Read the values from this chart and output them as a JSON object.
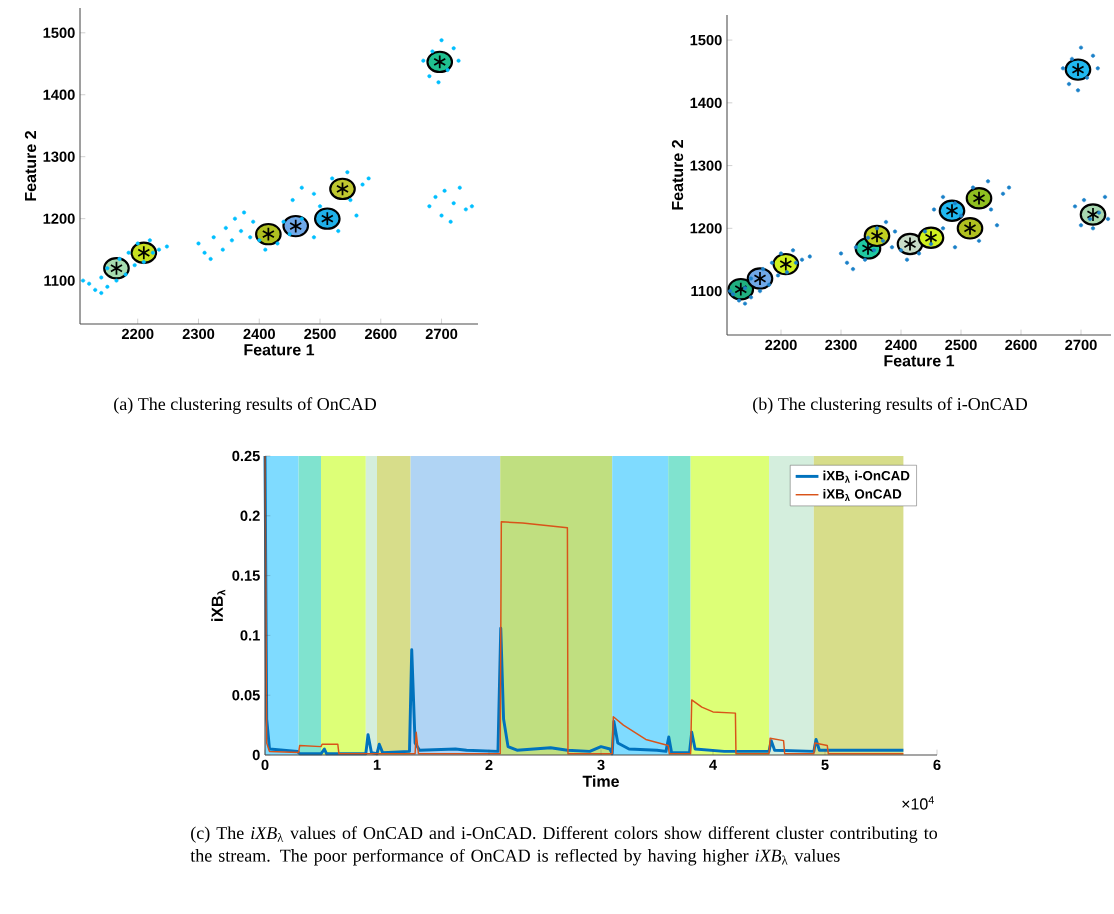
{
  "chart_data": [
    {
      "type": "scatter",
      "xlabel": "Feature 1",
      "ylabel": "Feature 2",
      "xlim": [
        2105,
        2760
      ],
      "ylim": [
        1030,
        1540
      ],
      "xticks": [
        2200,
        2300,
        2400,
        2500,
        2600,
        2700
      ],
      "yticks": [
        1100,
        1200,
        1300,
        1400,
        1500
      ],
      "series": [
        {
          "marker": "circle",
          "color": "#00bfff",
          "x": [
            2110,
            2120,
            2130,
            2140,
            2150,
            2150,
            2165,
            2170,
            2180,
            2185,
            2195,
            2200,
            2210,
            2220,
            2225,
            2235,
            2248,
            2140,
            2300,
            2310,
            2320,
            2325,
            2340,
            2345,
            2355,
            2360,
            2370,
            2375,
            2385,
            2390,
            2400,
            2410,
            2430,
            2440,
            2450,
            2455,
            2470,
            2470,
            2490,
            2490,
            2500,
            2520,
            2530,
            2545,
            2550,
            2560,
            2570,
            2580,
            2670,
            2680,
            2685,
            2695,
            2700,
            2710,
            2720,
            2728,
            2680,
            2690,
            2700,
            2705,
            2715,
            2720,
            2730,
            2740,
            2750
          ],
          "values": [
            1100,
            1095,
            1085,
            1105,
            1090,
            1120,
            1100,
            1135,
            1110,
            1145,
            1125,
            1160,
            1130,
            1165,
            1145,
            1150,
            1155,
            1080,
            1160,
            1145,
            1135,
            1170,
            1150,
            1185,
            1165,
            1200,
            1180,
            1210,
            1170,
            1195,
            1165,
            1150,
            1160,
            1195,
            1175,
            1230,
            1250,
            1200,
            1240,
            1170,
            1220,
            1265,
            1180,
            1275,
            1230,
            1205,
            1255,
            1265,
            1455,
            1430,
            1470,
            1420,
            1488,
            1440,
            1475,
            1455,
            1220,
            1235,
            1205,
            1245,
            1195,
            1225,
            1250,
            1215,
            1220
          ]
        },
        {
          "marker": "star",
          "colors": [
            "#a8dcb0",
            "#c8e020",
            "#b0c020",
            "#70a8e8",
            "#20b0e8",
            "#c0c830",
            "#20c090"
          ],
          "x": [
            2165,
            2210,
            2415,
            2460,
            2512,
            2537,
            2697
          ],
          "values": [
            1120,
            1145,
            1175,
            1188,
            1200,
            1248,
            1453
          ]
        }
      ],
      "annotations": [
        "(a) The clustering results of OnCAD"
      ]
    },
    {
      "type": "scatter",
      "xlabel": "Feature 1",
      "ylabel": "Feature 2",
      "xlim": [
        2110,
        2750
      ],
      "ylim": [
        1030,
        1540
      ],
      "xticks": [
        2200,
        2300,
        2400,
        2500,
        2600,
        2700
      ],
      "yticks": [
        1100,
        1200,
        1300,
        1400,
        1500
      ],
      "series": [
        {
          "marker": "circle",
          "color": "#1a80c8",
          "x": [
            2115,
            2120,
            2130,
            2140,
            2150,
            2150,
            2165,
            2170,
            2180,
            2185,
            2195,
            2200,
            2210,
            2220,
            2225,
            2235,
            2248,
            2140,
            2300,
            2310,
            2320,
            2325,
            2340,
            2345,
            2355,
            2360,
            2370,
            2375,
            2385,
            2390,
            2400,
            2410,
            2430,
            2440,
            2450,
            2455,
            2470,
            2470,
            2490,
            2490,
            2500,
            2520,
            2530,
            2545,
            2550,
            2560,
            2570,
            2580,
            2670,
            2680,
            2685,
            2695,
            2700,
            2710,
            2720,
            2728,
            2690,
            2700,
            2705,
            2715,
            2720,
            2730,
            2740,
            2745
          ],
          "values": [
            1100,
            1095,
            1085,
            1105,
            1090,
            1120,
            1100,
            1135,
            1110,
            1145,
            1125,
            1160,
            1130,
            1165,
            1145,
            1150,
            1155,
            1080,
            1160,
            1145,
            1135,
            1170,
            1150,
            1185,
            1165,
            1200,
            1180,
            1210,
            1170,
            1195,
            1165,
            1150,
            1160,
            1195,
            1175,
            1230,
            1250,
            1200,
            1240,
            1170,
            1220,
            1265,
            1180,
            1275,
            1230,
            1205,
            1255,
            1265,
            1455,
            1430,
            1470,
            1420,
            1488,
            1440,
            1475,
            1455,
            1235,
            1205,
            1245,
            1215,
            1200,
            1225,
            1250,
            1215
          ]
        },
        {
          "marker": "star",
          "colors": [
            "#20b080",
            "#70a8e8",
            "#d0f020",
            "#20c8a0",
            "#c0d020",
            "#c8dcc8",
            "#d0f020",
            "#20b8f0",
            "#b0c020",
            "#90c020",
            "#20b8f0",
            "#a8d8b0"
          ],
          "x": [
            2133,
            2165,
            2208,
            2345,
            2360,
            2415,
            2450,
            2485,
            2515,
            2530,
            2695,
            2720
          ],
          "values": [
            1103,
            1120,
            1143,
            1168,
            1188,
            1175,
            1185,
            1228,
            1200,
            1248,
            1453,
            1222
          ]
        }
      ],
      "annotations": [
        "(b) The clustering results of i-OnCAD"
      ]
    },
    {
      "type": "line",
      "xlabel": "Time",
      "ylabel": "iXB$_{λ}$",
      "xlim": [
        0,
        6
      ],
      "ylim": [
        0,
        0.25
      ],
      "xticks": [
        0,
        1,
        2,
        3,
        4,
        5,
        6
      ],
      "yticks": [
        0,
        0.05,
        0.1,
        0.15,
        0.2,
        0.25
      ],
      "legend": "top right",
      "bands": [
        {
          "axis": "x",
          "from": 0,
          "to": 0.3,
          "color": "#7fdbff"
        },
        {
          "axis": "x",
          "from": 0.3,
          "to": 0.5,
          "color": "#80e3cf"
        },
        {
          "axis": "x",
          "from": 0.5,
          "to": 0.9,
          "color": "#ddff77"
        },
        {
          "axis": "x",
          "from": 0.9,
          "to": 1.0,
          "color": "#d4eedd"
        },
        {
          "axis": "x",
          "from": 1.0,
          "to": 1.3,
          "color": "#d7dd8a"
        },
        {
          "axis": "x",
          "from": 1.3,
          "to": 2.1,
          "color": "#b0d4f4"
        },
        {
          "axis": "x",
          "from": 2.1,
          "to": 3.1,
          "color": "#c0df80"
        },
        {
          "axis": "x",
          "from": 3.1,
          "to": 3.6,
          "color": "#7fdbff"
        },
        {
          "axis": "x",
          "from": 3.6,
          "to": 3.8,
          "color": "#80e3cf"
        },
        {
          "axis": "x",
          "from": 3.8,
          "to": 4.5,
          "color": "#ddff77"
        },
        {
          "axis": "x",
          "from": 4.5,
          "to": 4.9,
          "color": "#d4eedd"
        },
        {
          "axis": "x",
          "from": 4.9,
          "to": 5.7,
          "color": "#d7dd8a"
        }
      ],
      "series": [
        {
          "name": "iXB$_{λ}$ i-OnCAD",
          "color": "#0072bd",
          "x": [
            0,
            0.015,
            0.04,
            0.29,
            0.31,
            0.5,
            0.53,
            0.55,
            0.9,
            0.92,
            0.95,
            1.0,
            1.02,
            1.05,
            1.29,
            1.31,
            1.34,
            1.38,
            1.7,
            1.8,
            2.08,
            2.105,
            2.13,
            2.17,
            2.25,
            2.4,
            2.55,
            2.7,
            2.9,
            3.0,
            3.08,
            3.1,
            3.115,
            3.15,
            3.25,
            3.5,
            3.58,
            3.605,
            3.63,
            3.79,
            3.81,
            3.84,
            4.1,
            4.5,
            4.52,
            4.55,
            4.9,
            4.92,
            4.95,
            5.7
          ],
          "values": [
            0.25,
            0.03,
            0.005,
            0.003,
            0.001,
            0.001,
            0.005,
            0.001,
            0.001,
            0.017,
            0.002,
            0.001,
            0.009,
            0.002,
            0.003,
            0.088,
            0.01,
            0.004,
            0.005,
            0.004,
            0.003,
            0.106,
            0.03,
            0.007,
            0.004,
            0.005,
            0.006,
            0.004,
            0.003,
            0.007,
            0.005,
            0.001,
            0.028,
            0.01,
            0.005,
            0.004,
            0.003,
            0.015,
            0.002,
            0.002,
            0.019,
            0.005,
            0.003,
            0.003,
            0.012,
            0.004,
            0.003,
            0.013,
            0.004,
            0.004
          ]
        },
        {
          "name": "iXB$_{λ}$ OnCAD",
          "color": "#d95319",
          "x": [
            0,
            0.015,
            0.04,
            0.3,
            0.31,
            0.5,
            0.51,
            0.65,
            0.66,
            1.34,
            1.35,
            1.37,
            2.1,
            2.11,
            2.3,
            2.5,
            2.7,
            2.705,
            3.1,
            3.11,
            3.2,
            3.4,
            3.6,
            3.61,
            3.8,
            3.81,
            3.9,
            4.0,
            4.2,
            4.205,
            4.5,
            4.51,
            4.63,
            4.64,
            4.9,
            4.91,
            5.02,
            5.03,
            5.7
          ],
          "values": [
            0.25,
            0.01,
            0.003,
            0.002,
            0.008,
            0.007,
            0.009,
            0.009,
            0.001,
            0.001,
            0.019,
            0.001,
            0.001,
            0.195,
            0.194,
            0.192,
            0.19,
            0.001,
            0.001,
            0.032,
            0.025,
            0.013,
            0.008,
            0.001,
            0.001,
            0.046,
            0.04,
            0.036,
            0.035,
            0.001,
            0.001,
            0.014,
            0.012,
            0.001,
            0.001,
            0.01,
            0.008,
            0.001,
            0.001
          ]
        }
      ],
      "annotations": [
        "×10$^{4}$",
        "(c) The *iXB*$_{λ}$ values of OnCAD and i-OnCAD. Different colors show different cluster contributing to the stream. The poor performance of OnCAD is reflected by having higher *iXB*$_{λ}$ values"
      ]
    }
  ]
}
